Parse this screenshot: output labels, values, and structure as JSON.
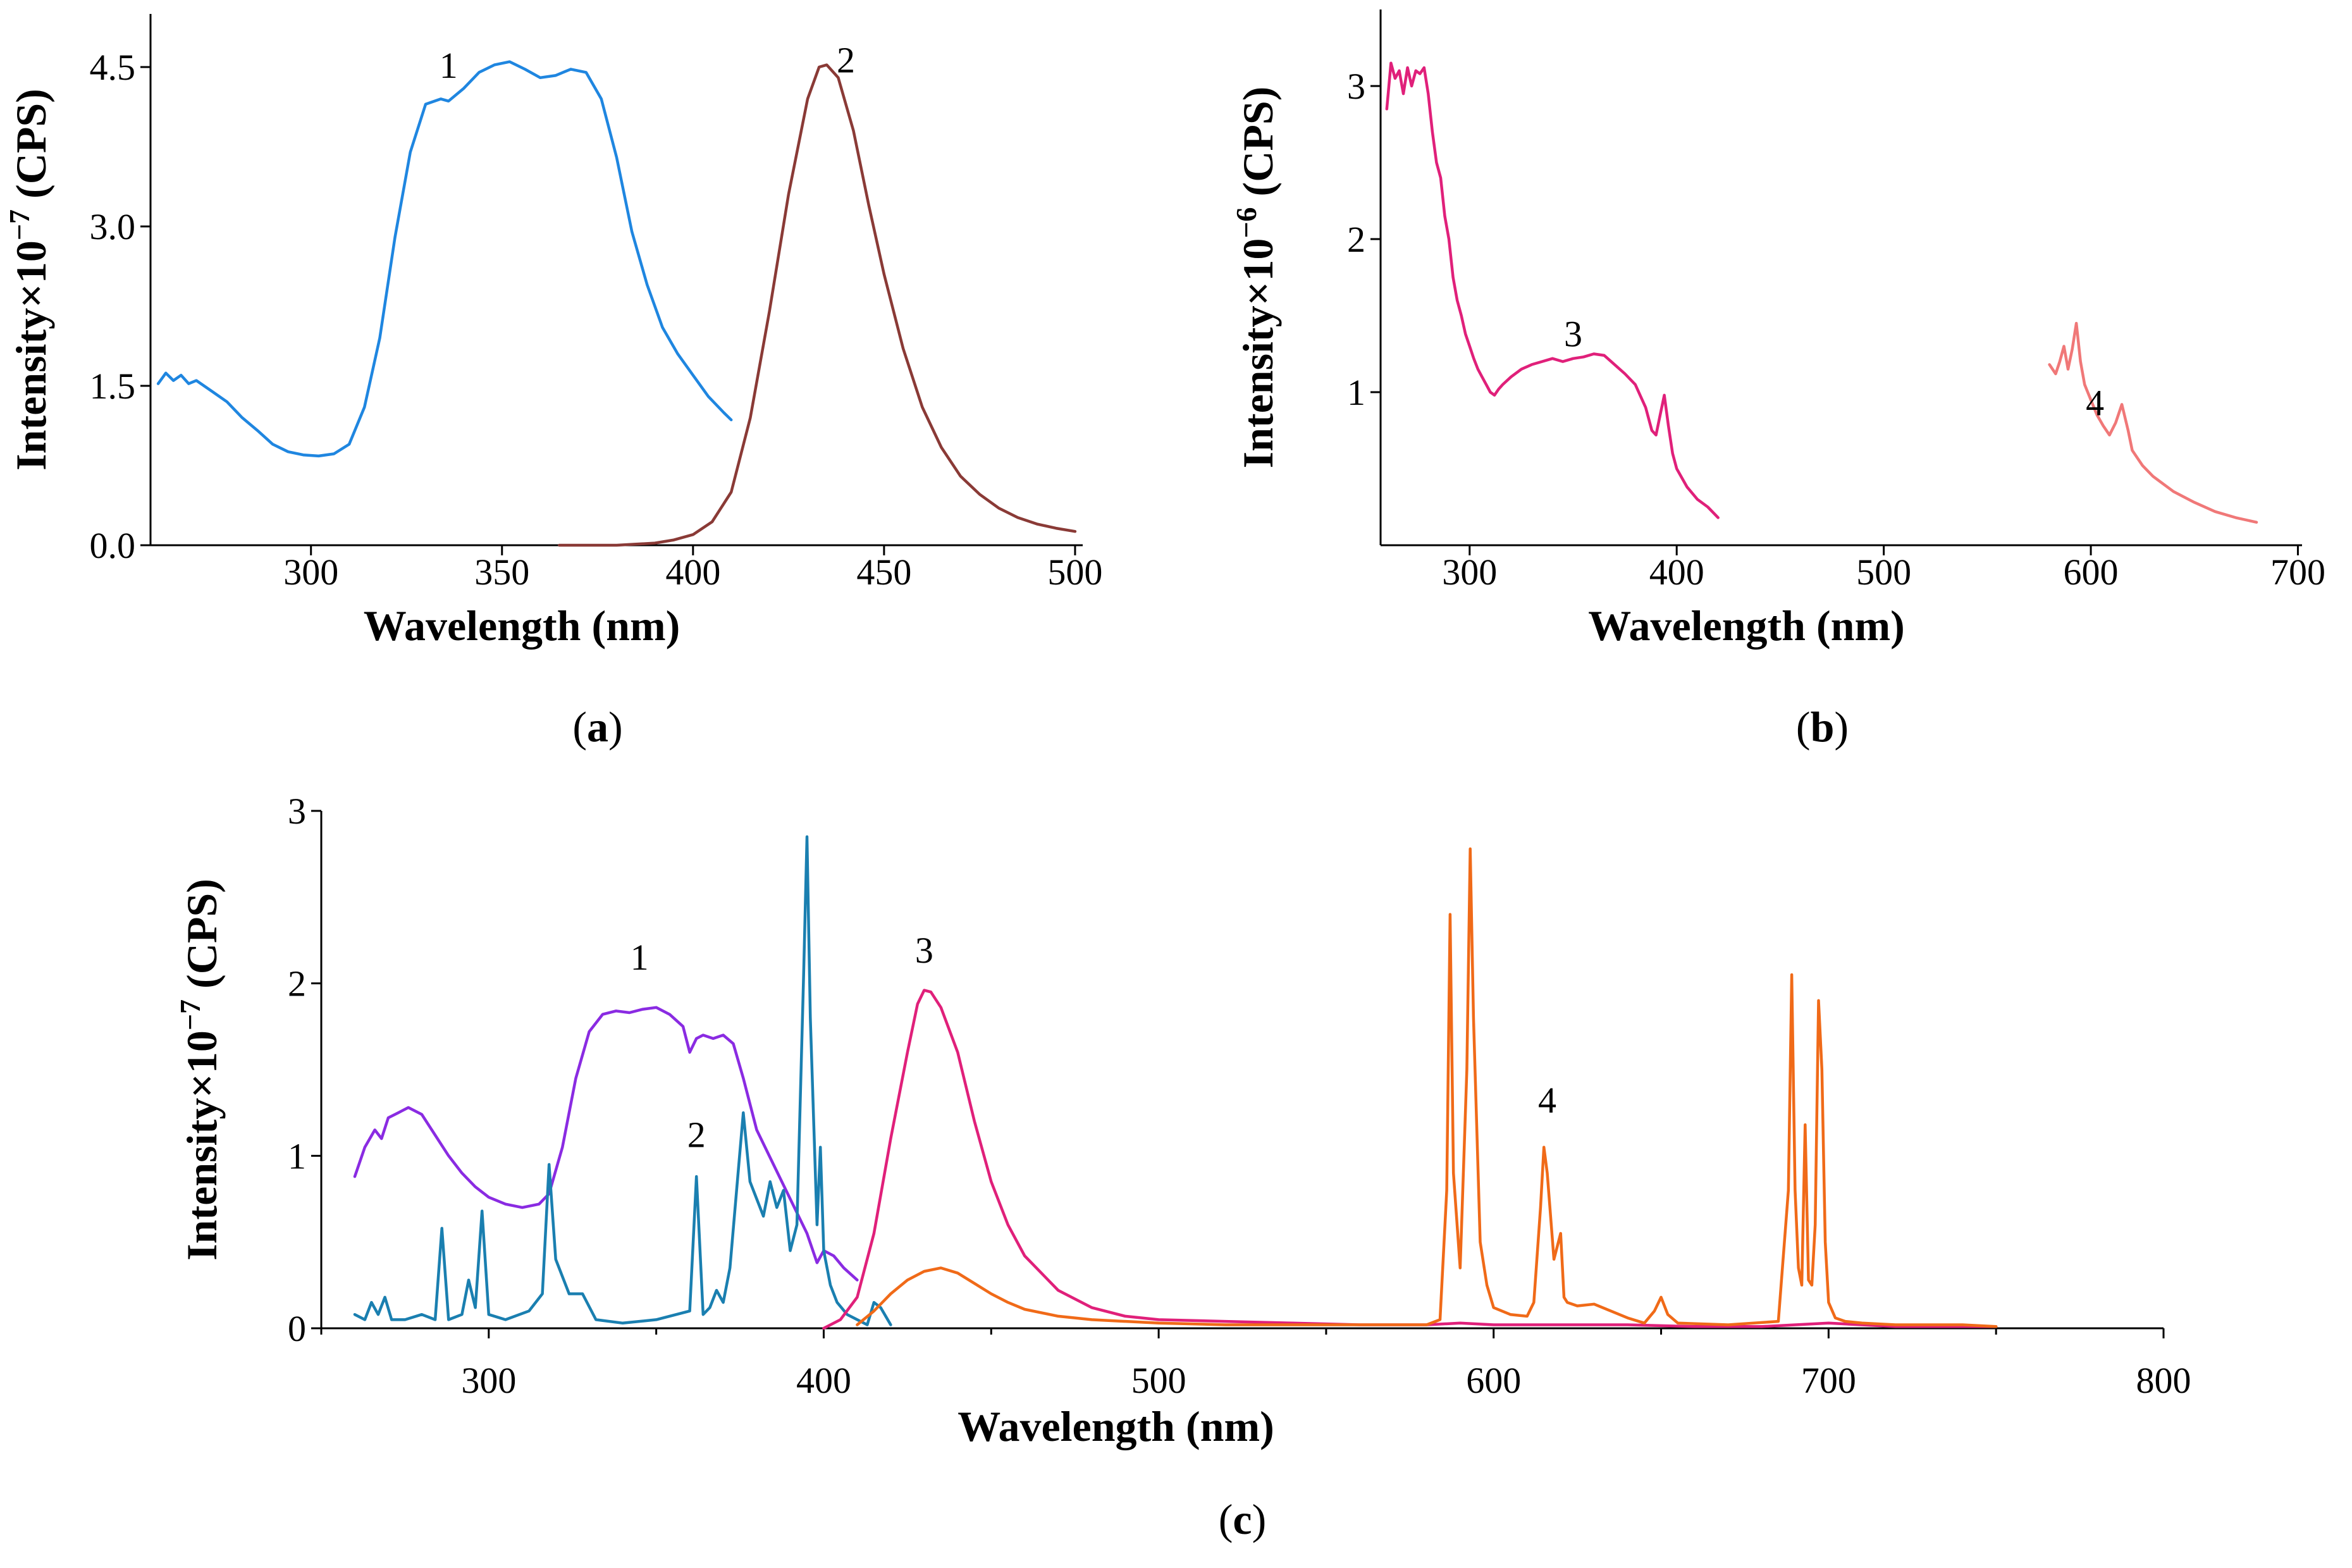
{
  "chart_data": [
    {
      "id": "a",
      "type": "line",
      "panel_label": {
        "open": "(",
        "letter": "a",
        "close": ")"
      },
      "xlabel": "Wavelength (nm)",
      "ylabel": {
        "prefix": "Intensity×10",
        "exp": "−7",
        "suffix": " (CPS)"
      },
      "xlim": [
        258,
        502
      ],
      "ylim": [
        0,
        5.0
      ],
      "xticks": [
        300,
        350,
        400,
        450,
        500
      ],
      "xtick_labels": [
        "300",
        "350",
        "400",
        "450",
        "500"
      ],
      "yticks": [
        0,
        1.5,
        3.0,
        4.5
      ],
      "ytick_labels": [
        "0.0",
        "1.5",
        "3.0",
        "4.5"
      ],
      "series": [
        {
          "name": "1",
          "color": "#1f86e0",
          "label": "1",
          "label_at": [
            336,
            4.4
          ],
          "x": [
            260,
            262,
            264,
            266,
            268,
            270,
            274,
            278,
            282,
            286,
            290,
            294,
            298,
            302,
            306,
            310,
            314,
            318,
            322,
            326,
            330,
            334,
            336,
            340,
            344,
            348,
            352,
            356,
            360,
            364,
            368,
            372,
            376,
            380,
            384,
            388,
            392,
            396,
            400,
            404,
            408,
            410
          ],
          "values": [
            1.52,
            1.62,
            1.55,
            1.6,
            1.52,
            1.55,
            1.45,
            1.35,
            1.2,
            1.08,
            0.95,
            0.88,
            0.85,
            0.84,
            0.86,
            0.95,
            1.3,
            1.95,
            2.9,
            3.7,
            4.15,
            4.2,
            4.18,
            4.3,
            4.45,
            4.52,
            4.55,
            4.48,
            4.4,
            4.42,
            4.48,
            4.45,
            4.2,
            3.65,
            2.95,
            2.45,
            2.05,
            1.8,
            1.6,
            1.4,
            1.25,
            1.18
          ]
        },
        {
          "name": "2",
          "color": "#8a3a36",
          "label": "2",
          "label_at": [
            440,
            4.45
          ],
          "x": [
            365,
            380,
            390,
            395,
            400,
            405,
            410,
            415,
            420,
            425,
            430,
            433,
            435,
            438,
            442,
            446,
            450,
            455,
            460,
            465,
            470,
            475,
            480,
            485,
            490,
            495,
            500
          ],
          "values": [
            0.0,
            0.0,
            0.02,
            0.05,
            0.1,
            0.22,
            0.5,
            1.2,
            2.2,
            3.3,
            4.2,
            4.5,
            4.52,
            4.4,
            3.9,
            3.2,
            2.55,
            1.85,
            1.3,
            0.92,
            0.65,
            0.48,
            0.35,
            0.26,
            0.2,
            0.16,
            0.13
          ]
        }
      ]
    },
    {
      "id": "b",
      "type": "line",
      "panel_label": {
        "open": "(",
        "letter": "b",
        "close": ")"
      },
      "xlabel": "Wavelength (nm)",
      "ylabel": {
        "prefix": "Intensity×10",
        "exp": "−6",
        "suffix": " (CPS)"
      },
      "xlim": [
        257,
        702
      ],
      "ylim": [
        0,
        3.5
      ],
      "xticks": [
        300,
        400,
        500,
        600,
        700
      ],
      "xtick_labels": [
        "300",
        "400",
        "500",
        "600",
        "700"
      ],
      "yticks": [
        1,
        2,
        3
      ],
      "ytick_labels": [
        "1",
        "2",
        "3"
      ],
      "series": [
        {
          "name": "3",
          "color": "#e0207a",
          "label": "3",
          "label_at": [
            350,
            1.3
          ],
          "x": [
            260,
            262,
            264,
            266,
            268,
            270,
            272,
            274,
            276,
            278,
            280,
            282,
            284,
            286,
            288,
            290,
            292,
            294,
            296,
            298,
            300,
            302,
            304,
            306,
            308,
            310,
            312,
            314,
            316,
            320,
            325,
            330,
            335,
            340,
            345,
            350,
            355,
            360,
            365,
            370,
            375,
            380,
            385,
            388,
            390,
            392,
            394,
            396,
            398,
            400,
            405,
            410,
            415,
            420
          ],
          "values": [
            2.85,
            3.15,
            3.05,
            3.1,
            2.95,
            3.12,
            3.0,
            3.1,
            3.08,
            3.12,
            2.95,
            2.7,
            2.5,
            2.4,
            2.15,
            2.0,
            1.75,
            1.6,
            1.5,
            1.38,
            1.3,
            1.22,
            1.15,
            1.1,
            1.05,
            1.0,
            0.98,
            1.02,
            1.05,
            1.1,
            1.15,
            1.18,
            1.2,
            1.22,
            1.2,
            1.22,
            1.23,
            1.25,
            1.24,
            1.18,
            1.12,
            1.05,
            0.9,
            0.75,
            0.72,
            0.85,
            0.98,
            0.78,
            0.6,
            0.5,
            0.38,
            0.3,
            0.25,
            0.18
          ]
        },
        {
          "name": "4",
          "color": "#f07878",
          "label": "4",
          "label_at": [
            602,
            0.85
          ],
          "x": [
            580,
            583,
            585,
            587,
            589,
            591,
            593,
            595,
            597,
            600,
            603,
            606,
            609,
            612,
            615,
            618,
            620,
            625,
            630,
            640,
            650,
            660,
            670,
            680
          ],
          "values": [
            1.18,
            1.12,
            1.2,
            1.3,
            1.15,
            1.28,
            1.45,
            1.2,
            1.05,
            0.95,
            0.85,
            0.78,
            0.72,
            0.8,
            0.92,
            0.75,
            0.62,
            0.52,
            0.45,
            0.35,
            0.28,
            0.22,
            0.18,
            0.15
          ]
        }
      ]
    },
    {
      "id": "c",
      "type": "line",
      "panel_label": {
        "open": "(",
        "letter": "c",
        "close": ")"
      },
      "xlabel": "Wavelength (nm)",
      "ylabel": {
        "prefix": "Intensity×10",
        "exp": "−7",
        "suffix": " (CPS)"
      },
      "xlim": [
        250,
        800
      ],
      "ylim": [
        0,
        3
      ],
      "xticks": [
        300,
        400,
        500,
        600,
        700,
        800
      ],
      "xtick_labels": [
        "300",
        "400",
        "500",
        "600",
        "700",
        "800"
      ],
      "yticks": [
        0,
        1,
        2,
        3
      ],
      "ytick_labels": [
        "0",
        "1",
        "2",
        "3"
      ],
      "series": [
        {
          "name": "1",
          "color": "#8a2be2",
          "label": "1",
          "label_at": [
            345,
            2.08
          ],
          "x": [
            260,
            263,
            266,
            268,
            270,
            273,
            276,
            280,
            284,
            288,
            292,
            296,
            300,
            305,
            310,
            315,
            318,
            322,
            326,
            330,
            334,
            338,
            342,
            346,
            350,
            354,
            358,
            360,
            362,
            364,
            367,
            370,
            373,
            376,
            380,
            385,
            390,
            395,
            398,
            400,
            403,
            406,
            410
          ],
          "values": [
            0.88,
            1.05,
            1.15,
            1.1,
            1.22,
            1.25,
            1.28,
            1.24,
            1.12,
            1.0,
            0.9,
            0.82,
            0.76,
            0.72,
            0.7,
            0.72,
            0.78,
            1.05,
            1.45,
            1.72,
            1.82,
            1.84,
            1.83,
            1.85,
            1.86,
            1.82,
            1.75,
            1.6,
            1.68,
            1.7,
            1.68,
            1.7,
            1.65,
            1.45,
            1.15,
            0.95,
            0.75,
            0.55,
            0.38,
            0.45,
            0.42,
            0.35,
            0.28
          ]
        },
        {
          "name": "2",
          "color": "#1a7fb0",
          "label": "2",
          "label_at": [
            362,
            1.05
          ],
          "x": [
            260,
            263,
            265,
            267,
            269,
            271,
            275,
            280,
            284,
            286,
            288,
            292,
            294,
            296,
            298,
            300,
            305,
            312,
            316,
            318,
            320,
            324,
            328,
            332,
            340,
            350,
            356,
            360,
            362,
            364,
            366,
            368,
            370,
            372,
            374,
            376,
            378,
            380,
            382,
            384,
            386,
            388,
            390,
            392,
            394,
            395,
            396,
            398,
            399,
            400,
            402,
            404,
            407,
            410,
            413,
            415,
            417,
            420
          ],
          "values": [
            0.08,
            0.05,
            0.15,
            0.08,
            0.18,
            0.05,
            0.05,
            0.08,
            0.05,
            0.58,
            0.05,
            0.08,
            0.28,
            0.12,
            0.68,
            0.08,
            0.05,
            0.1,
            0.2,
            0.95,
            0.4,
            0.2,
            0.2,
            0.05,
            0.03,
            0.05,
            0.08,
            0.1,
            0.88,
            0.08,
            0.12,
            0.22,
            0.15,
            0.35,
            0.8,
            1.25,
            0.85,
            0.75,
            0.65,
            0.85,
            0.7,
            0.8,
            0.45,
            0.6,
            2.05,
            2.85,
            1.8,
            0.6,
            1.05,
            0.45,
            0.25,
            0.15,
            0.08,
            0.05,
            0.02,
            0.15,
            0.12,
            0.02
          ]
        },
        {
          "name": "3",
          "color": "#e0207a",
          "label": "3",
          "label_at": [
            430,
            2.12
          ],
          "x": [
            400,
            405,
            410,
            415,
            420,
            425,
            428,
            430,
            432,
            435,
            440,
            445,
            450,
            455,
            460,
            470,
            480,
            490,
            500,
            520,
            540,
            560,
            580,
            590,
            600,
            620,
            640,
            660,
            680,
            700,
            720,
            750
          ],
          "values": [
            0.0,
            0.05,
            0.18,
            0.55,
            1.1,
            1.6,
            1.88,
            1.96,
            1.95,
            1.86,
            1.6,
            1.2,
            0.85,
            0.6,
            0.42,
            0.22,
            0.12,
            0.07,
            0.05,
            0.04,
            0.03,
            0.02,
            0.02,
            0.03,
            0.02,
            0.02,
            0.02,
            0.01,
            0.01,
            0.03,
            0.01,
            0.01
          ]
        },
        {
          "name": "4",
          "color": "#f06a18",
          "label": "4",
          "label_at": [
            616,
            1.25
          ],
          "x": [
            410,
            415,
            420,
            425,
            430,
            435,
            440,
            445,
            450,
            455,
            460,
            470,
            480,
            500,
            520,
            550,
            580,
            584,
            586,
            587,
            588,
            590,
            592,
            593,
            594,
            596,
            598,
            600,
            605,
            610,
            612,
            614,
            615,
            616,
            618,
            620,
            621,
            622,
            625,
            630,
            635,
            640,
            645,
            648,
            650,
            652,
            655,
            670,
            685,
            688,
            689,
            690,
            691,
            692,
            693,
            694,
            695,
            696,
            697,
            698,
            699,
            700,
            702,
            705,
            710,
            720,
            740,
            750
          ],
          "values": [
            0.02,
            0.1,
            0.2,
            0.28,
            0.33,
            0.35,
            0.32,
            0.26,
            0.2,
            0.15,
            0.11,
            0.07,
            0.05,
            0.03,
            0.02,
            0.02,
            0.02,
            0.05,
            0.8,
            2.4,
            0.9,
            0.35,
            1.5,
            2.78,
            1.8,
            0.5,
            0.25,
            0.12,
            0.08,
            0.07,
            0.15,
            0.7,
            1.05,
            0.9,
            0.4,
            0.55,
            0.18,
            0.15,
            0.13,
            0.14,
            0.1,
            0.06,
            0.03,
            0.1,
            0.18,
            0.08,
            0.03,
            0.02,
            0.04,
            0.8,
            2.05,
            0.8,
            0.35,
            0.25,
            1.18,
            0.28,
            0.25,
            0.6,
            1.9,
            1.5,
            0.5,
            0.15,
            0.06,
            0.04,
            0.03,
            0.02,
            0.02,
            0.01
          ]
        }
      ]
    }
  ]
}
